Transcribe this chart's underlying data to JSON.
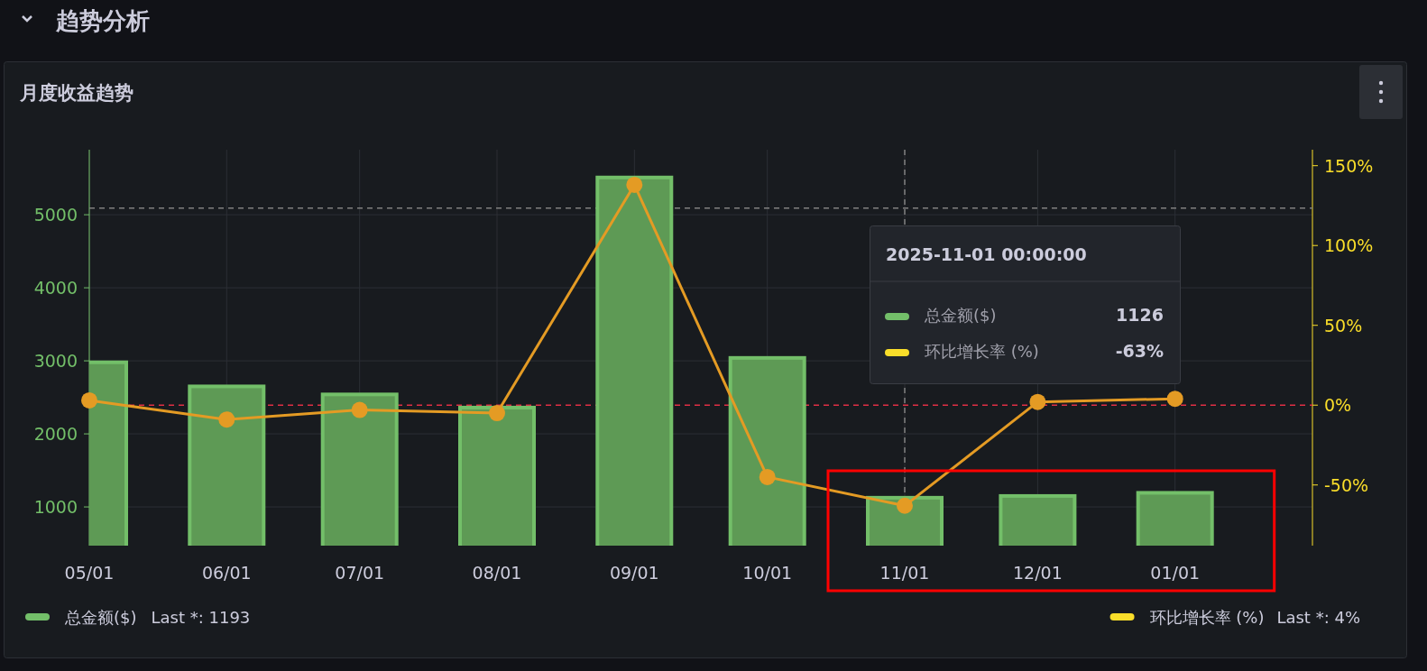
{
  "chart_data": {
    "type": "bar",
    "title": "月度收益趋势",
    "subtitle": "趋势分析",
    "x": [
      "2025-05-01",
      "2025-06-01",
      "2025-07-01",
      "2025-08-01",
      "2025-09-01",
      "2025-10-01",
      "2025-11-01",
      "2025-12-01",
      "2026-01-01"
    ],
    "series": [
      {
        "name": "总金额($)",
        "color": "#73bf69",
        "values": [
          2980,
          2650,
          2540,
          2360,
          5510,
          3040,
          1126,
          1150,
          1193
        ]
      },
      {
        "name": "环比增长率 (%)",
        "type": "line",
        "axis": "y2",
        "color": "#e49b24",
        "values": [
          3,
          -9,
          -3,
          -5,
          138,
          -45,
          -63,
          2,
          4
        ]
      }
    ],
    "xlim": [
      "2025-05-01",
      "2026-02-01"
    ],
    "xticks": [
      {
        "value": "2025-05-01",
        "label": "05/01"
      },
      {
        "value": "2025-06-01",
        "label": "06/01"
      },
      {
        "value": "2025-07-01",
        "label": "07/01"
      },
      {
        "value": "2025-08-01",
        "label": "08/01"
      },
      {
        "value": "2025-09-01",
        "label": "09/01"
      },
      {
        "value": "2025-10-01",
        "label": "10/01"
      },
      {
        "value": "2025-11-01",
        "label": "11/01"
      },
      {
        "value": "2025-12-01",
        "label": "12/01"
      },
      {
        "value": "2026-01-01",
        "label": "01/01"
      }
    ],
    "ylim": [
      470,
      5890
    ],
    "yticks": [
      1000,
      2000,
      3000,
      4000,
      5000
    ],
    "y2lim": [
      -88,
      160
    ],
    "y2ticks": [
      {
        "value": -50,
        "label": "-50%"
      },
      {
        "value": 0,
        "label": "0%"
      },
      {
        "value": 50,
        "label": "50%"
      },
      {
        "value": 100,
        "label": "100%"
      },
      {
        "value": 150,
        "label": "150%"
      }
    ],
    "ref_lines": [
      {
        "axis": "y",
        "value": 5090,
        "color": "#808080",
        "line_style": "dashed"
      },
      {
        "axis": "y2",
        "value": 0,
        "color": "#e02f44",
        "line_style": "dashed"
      },
      {
        "axis": "x",
        "value": "2025-11-01",
        "color": "#808080",
        "line_style": "dashed"
      }
    ],
    "annotations": [
      "Last *: 1193",
      "Last *: 4%",
      "2025-11-01 00:00:00",
      "1126",
      "-63%"
    ],
    "grid": true,
    "legend": "bottom",
    "marker": "circle"
  }
}
